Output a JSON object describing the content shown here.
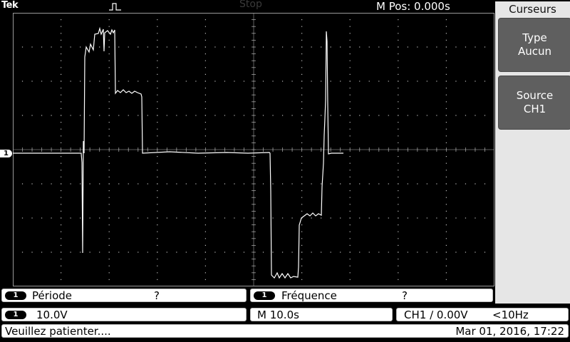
{
  "header": {
    "brand": "Tek",
    "run_state": "Stop",
    "m_pos": "M Pos: 0.000s"
  },
  "channel_marker": "1",
  "menu": {
    "title": "Curseurs",
    "buttons": [
      {
        "line1": "Type",
        "line2": "Aucun"
      },
      {
        "line1": "Source",
        "line2": "CH1"
      }
    ]
  },
  "measurements": [
    {
      "channel": "1",
      "label": "Période",
      "value": "?"
    },
    {
      "channel": "1",
      "label": "Fréquence",
      "value": "?"
    }
  ],
  "status": {
    "ch_channel": "1",
    "volts_div": "10.0V",
    "timebase": "M 10.0s",
    "trigger": "CH1 ∕ 0.00V",
    "freq": "<10Hz"
  },
  "footer": {
    "message": "Veuillez patienter....",
    "datetime": "Mar 01, 2016, 17:22"
  },
  "colors": {
    "background": "#000000",
    "grid_dot": "#bcbcbc",
    "trace": "#ffffff",
    "menu_bg": "#e6e6e6",
    "menu_button": "#5f5f5f"
  },
  "icons": {
    "trigger": "rising-edge-icon"
  }
}
